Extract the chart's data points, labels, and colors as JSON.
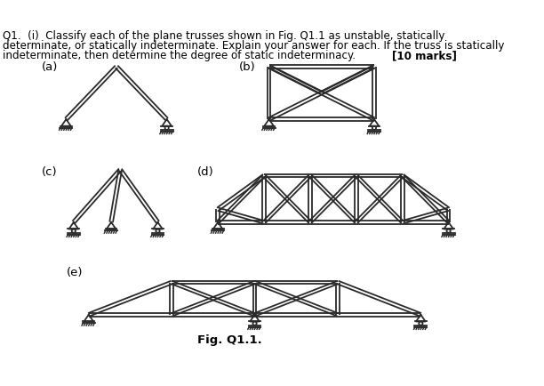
{
  "fig_label": "Fig. Q1.1.",
  "label_a": "(a)",
  "label_b": "(b)",
  "label_c": "(c)",
  "label_d": "(d)",
  "label_e": "(e)",
  "line_color": "#2a2a2a",
  "bg_color": "#ffffff",
  "title_line1": "Q1.  (i)  Classify each of the plane trusses shown in Fig. Q1.1 as unstable, statically",
  "title_line2": "determinate, or statically indeterminate. Explain your answer for each. If the truss is statically",
  "title_line3": "indeterminate, then determine the degree of static indeterminacy.",
  "marks": "[10 marks]"
}
